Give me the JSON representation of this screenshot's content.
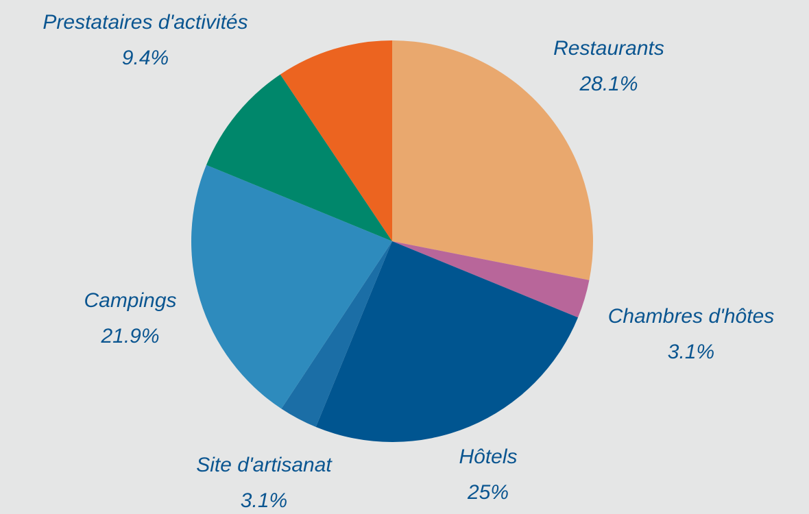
{
  "chart_data": {
    "type": "pie",
    "categories": [
      "Restaurants",
      "Chambres d'hôtes",
      "Hôtels",
      "Site d'artisanat",
      "Campings",
      null,
      "Prestataires d'activités"
    ],
    "values": [
      28.1,
      3.1,
      25,
      3.1,
      21.9,
      9.4,
      9.4
    ],
    "value_labels": [
      "28.1%",
      "3.1%",
      "25%",
      "3.1%",
      "21.9%",
      null,
      "9.4%"
    ],
    "colors": [
      "#e9a86e",
      "#b8669a",
      "#005590",
      "#1b6ea6",
      "#2e8bbd",
      "#00876b",
      "#ec6420"
    ]
  }
}
